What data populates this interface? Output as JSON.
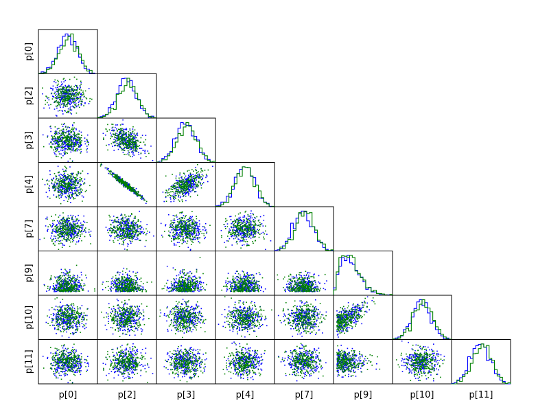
{
  "chart_data": {
    "type": "scatter",
    "title": "",
    "layout": "corner-plot",
    "parameters": [
      "p[0]",
      "p[2]",
      "p[3]",
      "p[4]",
      "p[7]",
      "p[9]",
      "p[10]",
      "p[11]"
    ],
    "x_labels": [
      "p[0]",
      "p[2]",
      "p[3]",
      "p[4]",
      "p[7]",
      "p[9]",
      "p[10]",
      "p[11]"
    ],
    "y_labels": [
      "p[0]",
      "p[2]",
      "p[3]",
      "p[4]",
      "p[7]",
      "p[9]",
      "p[10]",
      "p[11]"
    ],
    "diagonal": "histogram (step)",
    "off_diagonal": "scatter",
    "series": [
      {
        "color": "#0000ff"
      },
      {
        "color": "#008000"
      }
    ],
    "grid": false,
    "axis_ticks": "none"
  }
}
